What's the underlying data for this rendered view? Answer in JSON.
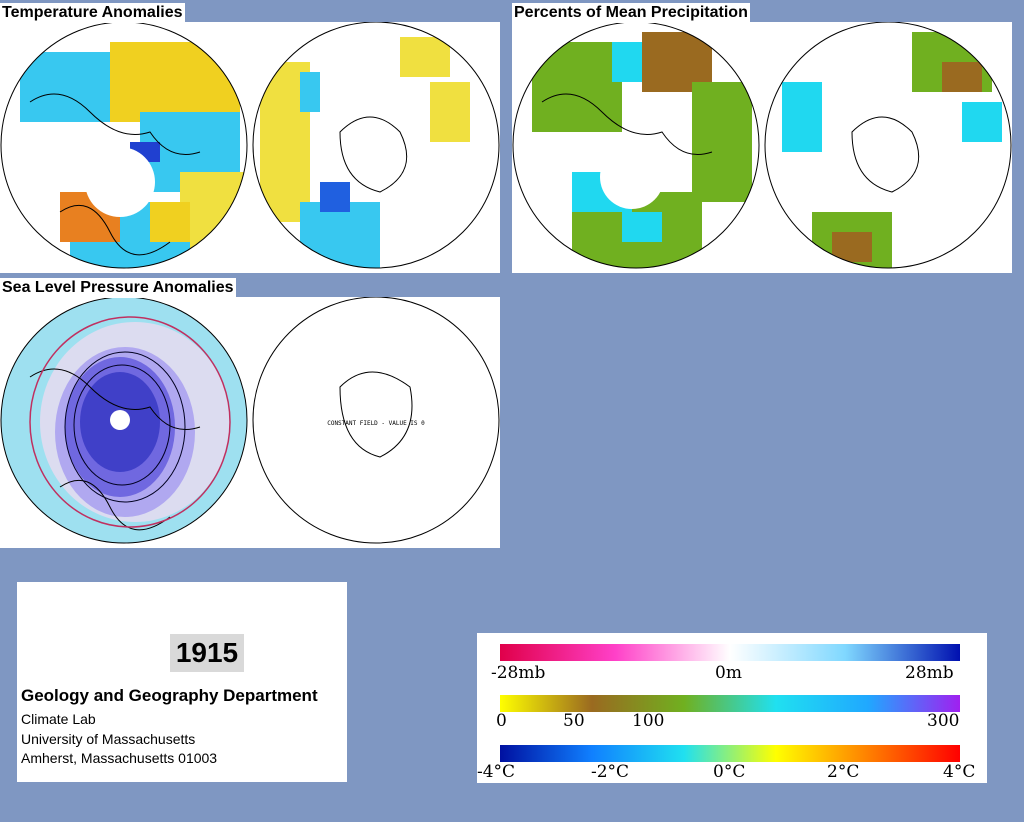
{
  "panels": {
    "temperature_title": "Temperature Anomalies",
    "precipitation_title": "Percents of Mean Precipitation",
    "slp_title": "Sea Level Pressure Anomalies",
    "constant_field_note": "CONSTANT FIELD - VALUE IS 0"
  },
  "info": {
    "year": "1915",
    "department": "Geology and Geography Department",
    "lab": "Climate Lab",
    "university": "University of Massachusetts",
    "city": "Amherst, Massachusetts 01003"
  },
  "legends": {
    "pressure": {
      "labels": [
        "-28mb",
        "0m",
        "28mb"
      ],
      "colors": [
        "#e0004a",
        "#ff40c8",
        "#ffffff",
        "#80d8ff",
        "#0010b0"
      ]
    },
    "precip": {
      "labels": [
        "0",
        "50",
        "100",
        "300"
      ],
      "colors": [
        "#ffff00",
        "#9a6a20",
        "#70b020",
        "#20e0f0",
        "#20a8ff",
        "#a020f0"
      ]
    },
    "temp": {
      "labels": [
        "-4°C",
        "-2°C",
        "0°C",
        "2°C",
        "4°C"
      ],
      "colors": [
        "#0010a0",
        "#1080ff",
        "#20e0f0",
        "#ffff00",
        "#ff8000",
        "#ff0000"
      ]
    }
  }
}
